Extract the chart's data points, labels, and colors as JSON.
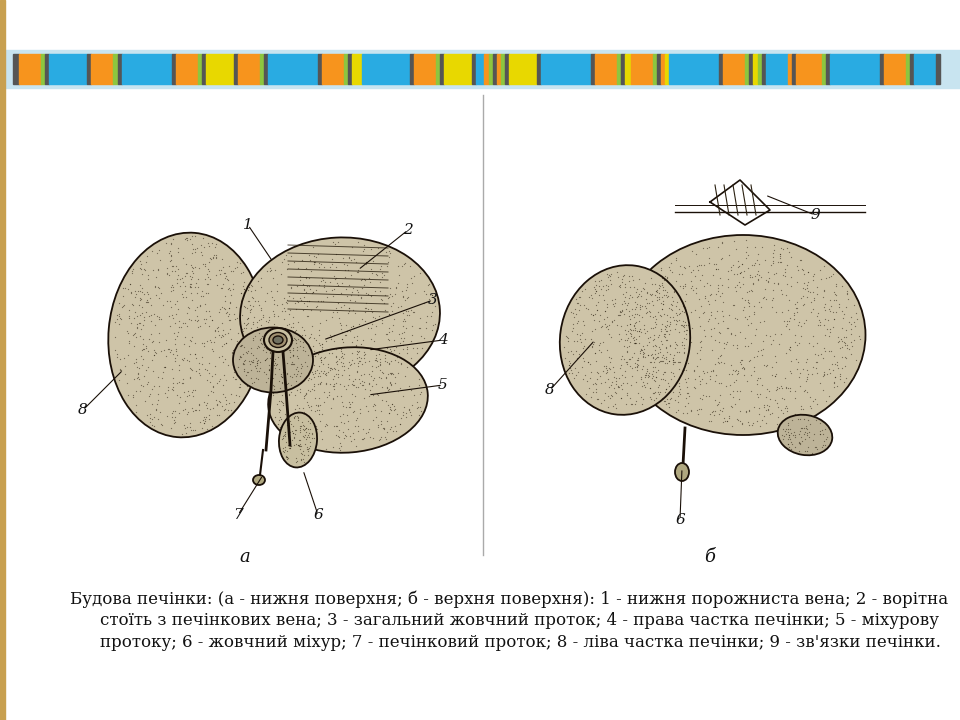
{
  "background_color": "#f5f5f5",
  "left_border_color": "#c8a050",
  "stripe_bg_color": "#c8e4f0",
  "caption_line1": "Будова печінки: (а - нижня поверхня; б - верхня поверхня): 1 - нижня порожниста вена; 2 - ворітна",
  "caption_line2": "стоїть з печінкових вена; 3 - загальний жовчний проток; 4 - права частка печінки; 5 - міхурову",
  "caption_line3": "протоку; 6 - жовчний міхур; 7 - печінковий проток; 8 - ліва частка печінки; 9 - зв'язки печінки.",
  "label_a": "а",
  "label_b": "б",
  "stripes": [
    [
      8,
      6,
      "#555555"
    ],
    [
      14,
      22,
      "#f7941d"
    ],
    [
      36,
      4,
      "#8dc63f"
    ],
    [
      40,
      4,
      "#555555"
    ],
    [
      44,
      38,
      "#29abe2"
    ],
    [
      82,
      4,
      "#555555"
    ],
    [
      86,
      22,
      "#f7941d"
    ],
    [
      108,
      5,
      "#8dc63f"
    ],
    [
      113,
      4,
      "#555555"
    ],
    [
      117,
      50,
      "#29abe2"
    ],
    [
      167,
      4,
      "#555555"
    ],
    [
      171,
      22,
      "#f7941d"
    ],
    [
      193,
      4,
      "#8dc63f"
    ],
    [
      197,
      4,
      "#555555"
    ],
    [
      201,
      28,
      "#e8d800"
    ],
    [
      229,
      4,
      "#555555"
    ],
    [
      233,
      22,
      "#f7941d"
    ],
    [
      255,
      4,
      "#8dc63f"
    ],
    [
      259,
      4,
      "#555555"
    ],
    [
      263,
      50,
      "#29abe2"
    ],
    [
      313,
      4,
      "#555555"
    ],
    [
      317,
      22,
      "#f7941d"
    ],
    [
      339,
      4,
      "#8dc63f"
    ],
    [
      343,
      4,
      "#555555"
    ],
    [
      347,
      10,
      "#e8d800"
    ],
    [
      357,
      48,
      "#29abe2"
    ],
    [
      405,
      4,
      "#555555"
    ],
    [
      409,
      22,
      "#f7941d"
    ],
    [
      431,
      4,
      "#8dc63f"
    ],
    [
      435,
      4,
      "#555555"
    ],
    [
      439,
      28,
      "#e8d800"
    ],
    [
      467,
      4,
      "#555555"
    ],
    [
      471,
      8,
      "#29abe2"
    ],
    [
      479,
      5,
      "#f7941d"
    ],
    [
      484,
      4,
      "#8dc63f"
    ],
    [
      488,
      4,
      "#555555"
    ],
    [
      492,
      4,
      "#f7941d"
    ],
    [
      496,
      4,
      "#8dc63f"
    ],
    [
      500,
      4,
      "#555555"
    ],
    [
      504,
      28,
      "#e8d800"
    ],
    [
      532,
      4,
      "#555555"
    ],
    [
      536,
      50,
      "#29abe2"
    ],
    [
      586,
      4,
      "#555555"
    ],
    [
      590,
      22,
      "#f7941d"
    ],
    [
      612,
      4,
      "#8dc63f"
    ],
    [
      616,
      4,
      "#555555"
    ],
    [
      620,
      6,
      "#e8d800"
    ],
    [
      626,
      22,
      "#f7941d"
    ],
    [
      648,
      4,
      "#8dc63f"
    ],
    [
      652,
      4,
      "#555555"
    ],
    [
      656,
      4,
      "#f7941d"
    ],
    [
      660,
      4,
      "#e8d800"
    ],
    [
      664,
      50,
      "#29abe2"
    ],
    [
      714,
      4,
      "#555555"
    ],
    [
      718,
      22,
      "#f7941d"
    ],
    [
      740,
      4,
      "#8dc63f"
    ],
    [
      744,
      4,
      "#555555"
    ],
    [
      748,
      5,
      "#e8d800"
    ],
    [
      753,
      4,
      "#8dc63f"
    ],
    [
      757,
      4,
      "#555555"
    ],
    [
      761,
      22,
      "#29abe2"
    ],
    [
      783,
      4,
      "#f7941d"
    ],
    [
      787,
      4,
      "#555555"
    ],
    [
      791,
      4,
      "#f7941d"
    ],
    [
      795,
      22,
      "#f7941d"
    ],
    [
      817,
      4,
      "#8dc63f"
    ],
    [
      821,
      4,
      "#555555"
    ],
    [
      825,
      50,
      "#29abe2"
    ],
    [
      875,
      4,
      "#555555"
    ],
    [
      879,
      22,
      "#f7941d"
    ],
    [
      901,
      4,
      "#8dc63f"
    ],
    [
      905,
      4,
      "#555555"
    ],
    [
      909,
      22,
      "#29abe2"
    ],
    [
      931,
      4,
      "#555555"
    ]
  ]
}
